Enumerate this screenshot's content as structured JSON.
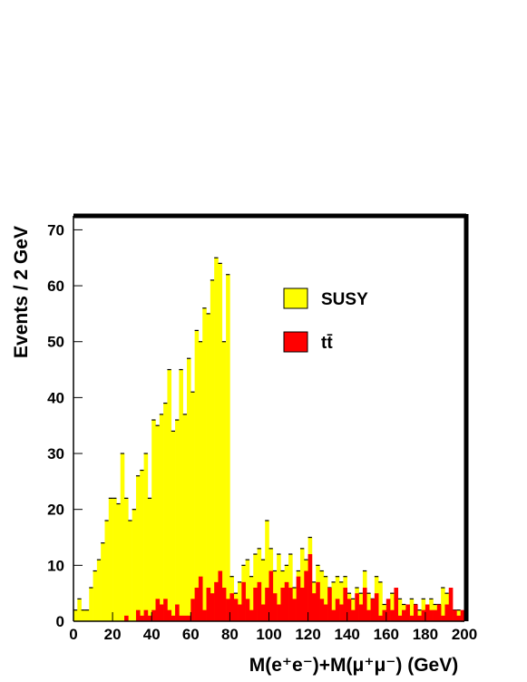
{
  "chart_data": {
    "type": "histogram",
    "xlabel": "M(e⁺e⁻)+M(μ⁺μ⁻) (GeV)",
    "ylabel": "Events / 2 GeV",
    "bins": [
      0,
      2,
      4,
      6,
      8,
      10,
      12,
      14,
      16,
      18,
      20,
      22,
      24,
      26,
      28,
      30,
      32,
      34,
      36,
      38,
      40,
      42,
      44,
      46,
      48,
      50,
      52,
      54,
      56,
      58,
      60,
      62,
      64,
      66,
      68,
      70,
      72,
      74,
      76,
      78,
      80,
      82,
      84,
      86,
      88,
      90,
      92,
      94,
      96,
      98,
      100,
      102,
      104,
      106,
      108,
      110,
      112,
      114,
      116,
      118,
      120,
      122,
      124,
      126,
      128,
      130,
      132,
      134,
      136,
      138,
      140,
      142,
      144,
      146,
      148,
      150,
      152,
      154,
      156,
      158,
      160,
      162,
      164,
      166,
      168,
      170,
      172,
      174,
      176,
      178,
      180,
      182,
      184,
      186,
      188,
      190,
      192,
      194,
      196,
      198,
      200
    ],
    "series": [
      {
        "name": "SUSY",
        "color": "#ffff00",
        "values": [
          2,
          4,
          2,
          2,
          6,
          9,
          11,
          14,
          18,
          22,
          22,
          21,
          30,
          22,
          18,
          20,
          26,
          27,
          30,
          22,
          36,
          35,
          37,
          39,
          45,
          34,
          36,
          45,
          37,
          47,
          41,
          52,
          50,
          56,
          55,
          61,
          65,
          64,
          50,
          62,
          8,
          5,
          7,
          10,
          11,
          8,
          12,
          13,
          11,
          18,
          13,
          9,
          12,
          9,
          10,
          12,
          6,
          9,
          13,
          11,
          15,
          7,
          10,
          9,
          8,
          6,
          7,
          8,
          7,
          8,
          5,
          4,
          6,
          5,
          9,
          5,
          4,
          8,
          7,
          3,
          3,
          5,
          4,
          4,
          3,
          2,
          4,
          3,
          2,
          4,
          2,
          4,
          3,
          3,
          6,
          5,
          2,
          2,
          2,
          0
        ]
      },
      {
        "name": "tt̄",
        "color": "#ff0000",
        "values": [
          0,
          0,
          0,
          0,
          0,
          0,
          0,
          0,
          0,
          0,
          0,
          0,
          0,
          1,
          0,
          0,
          2,
          1,
          2,
          1,
          2,
          4,
          3,
          4,
          2,
          1,
          3,
          1,
          1,
          1,
          4,
          6,
          8,
          2,
          6,
          5,
          7,
          9,
          6,
          4,
          5,
          4,
          3,
          7,
          4,
          2,
          6,
          7,
          3,
          6,
          9,
          5,
          3,
          6,
          7,
          6,
          4,
          8,
          6,
          9,
          12,
          5,
          7,
          4,
          3,
          6,
          2,
          4,
          3,
          6,
          4,
          2,
          5,
          3,
          6,
          2,
          4,
          5,
          1,
          2,
          4,
          2,
          6,
          1,
          2,
          3,
          1,
          3,
          1,
          2,
          3,
          2,
          2,
          3,
          1,
          3,
          6,
          2,
          1,
          2
        ]
      }
    ],
    "xlim": [
      0,
      200
    ],
    "xticks": [
      0,
      20,
      40,
      60,
      80,
      100,
      120,
      140,
      160,
      180,
      200
    ],
    "ylim": [
      0,
      72.5
    ],
    "yticks": [
      0,
      10,
      20,
      30,
      40,
      50,
      60,
      70
    ]
  }
}
